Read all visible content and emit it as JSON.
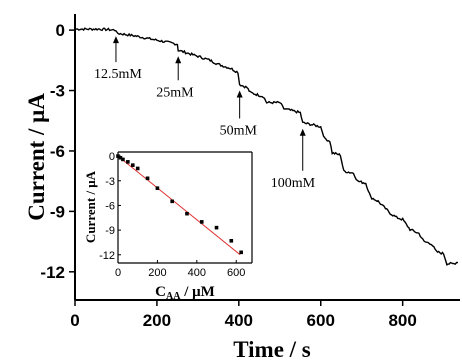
{
  "chart_data": [
    {
      "type": "line",
      "xlabel": "Time / s",
      "ylabel": "Current / μA",
      "xlim": [
        0,
        940
      ],
      "ylim": [
        -13.4,
        0.8
      ],
      "xticks": [
        0,
        200,
        400,
        600,
        800
      ],
      "yticks": [
        0,
        -3,
        -6,
        -9,
        -12
      ],
      "xtick_labels": [
        "0",
        "200",
        "400",
        "600",
        "800"
      ],
      "ytick_labels": [
        "0",
        "-3",
        "-6",
        "-9",
        "-12"
      ],
      "series": [
        {
          "x": [
            0,
            60,
            100,
            102,
            150,
            200,
            250,
            252,
            300,
            330,
            350,
            380,
            398,
            402,
            420,
            428,
            460,
            468,
            500,
            510,
            520,
            550,
            556,
            580,
            600,
            610,
            622,
            628,
            648,
            656,
            680,
            690,
            710,
            722,
            740,
            755,
            770,
            785,
            800,
            818,
            840,
            852,
            870,
            882,
            900,
            908,
            925,
            935
          ],
          "y": [
            0.05,
            0.05,
            0.0,
            -0.15,
            -0.3,
            -0.5,
            -0.7,
            -1.0,
            -1.3,
            -1.5,
            -1.7,
            -1.9,
            -2.1,
            -2.7,
            -2.85,
            -3.1,
            -3.3,
            -3.6,
            -3.6,
            -3.9,
            -3.95,
            -4.1,
            -4.6,
            -4.7,
            -4.8,
            -5.4,
            -5.5,
            -6.1,
            -6.2,
            -7.0,
            -7.1,
            -7.5,
            -7.6,
            -8.3,
            -8.5,
            -8.8,
            -9.1,
            -9.3,
            -9.4,
            -9.9,
            -10.1,
            -10.5,
            -10.6,
            -11.0,
            -11.1,
            -11.6,
            -11.6,
            -11.5
          ]
        }
      ],
      "annotations": [
        {
          "text": "12.5mM",
          "x": 100,
          "y": 0.0
        },
        {
          "text": "25mM",
          "x": 252,
          "y": -1.0
        },
        {
          "text": "50mM",
          "x": 402,
          "y": -2.7
        },
        {
          "text": "100mM",
          "x": 556,
          "y": -4.6
        }
      ]
    },
    {
      "type": "scatter",
      "xlabel_main": "C",
      "xlabel_sub": "AA",
      "xlabel_unit": " / μM",
      "ylabel": "Current / μA",
      "xlim": [
        0,
        680
      ],
      "ylim": [
        -13,
        0.5
      ],
      "xticks": [
        0,
        200,
        400,
        600
      ],
      "yticks": [
        0,
        -3,
        -6,
        -9,
        -12
      ],
      "xtick_labels": [
        "0",
        "200",
        "400",
        "600"
      ],
      "ytick_labels": [
        "0",
        "-3",
        "-6",
        "-9",
        "-12"
      ],
      "series": [
        {
          "x": [
            0,
            12.5,
            25,
            50,
            75,
            100,
            150,
            200,
            275,
            350,
            425,
            500,
            575,
            625
          ],
          "y": [
            0,
            -0.2,
            -0.4,
            -0.7,
            -1.1,
            -1.5,
            -2.7,
            -3.9,
            -5.5,
            -7.0,
            -8.0,
            -8.7,
            -10.3,
            -11.7
          ]
        }
      ],
      "fit_line": {
        "x": [
          0,
          620
        ],
        "y": [
          0,
          -12.0
        ],
        "color": "#e03030"
      }
    }
  ]
}
